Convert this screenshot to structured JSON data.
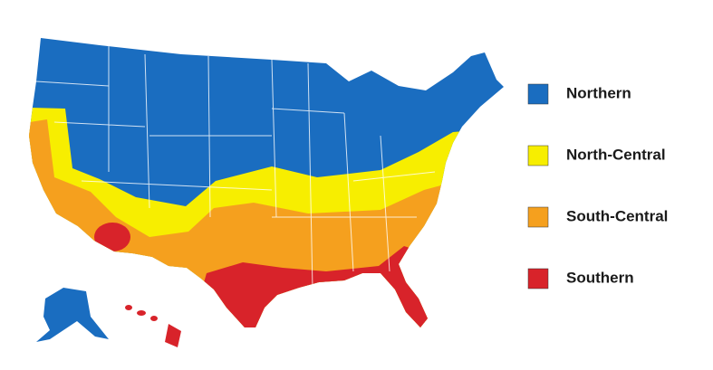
{
  "legend": {
    "items": [
      {
        "label": "Northern",
        "color": "#1a6dc0"
      },
      {
        "label": "North-Central",
        "color": "#f7ee00"
      },
      {
        "label": "South-Central",
        "color": "#f5a01e"
      },
      {
        "label": "Southern",
        "color": "#d8232a"
      }
    ]
  }
}
